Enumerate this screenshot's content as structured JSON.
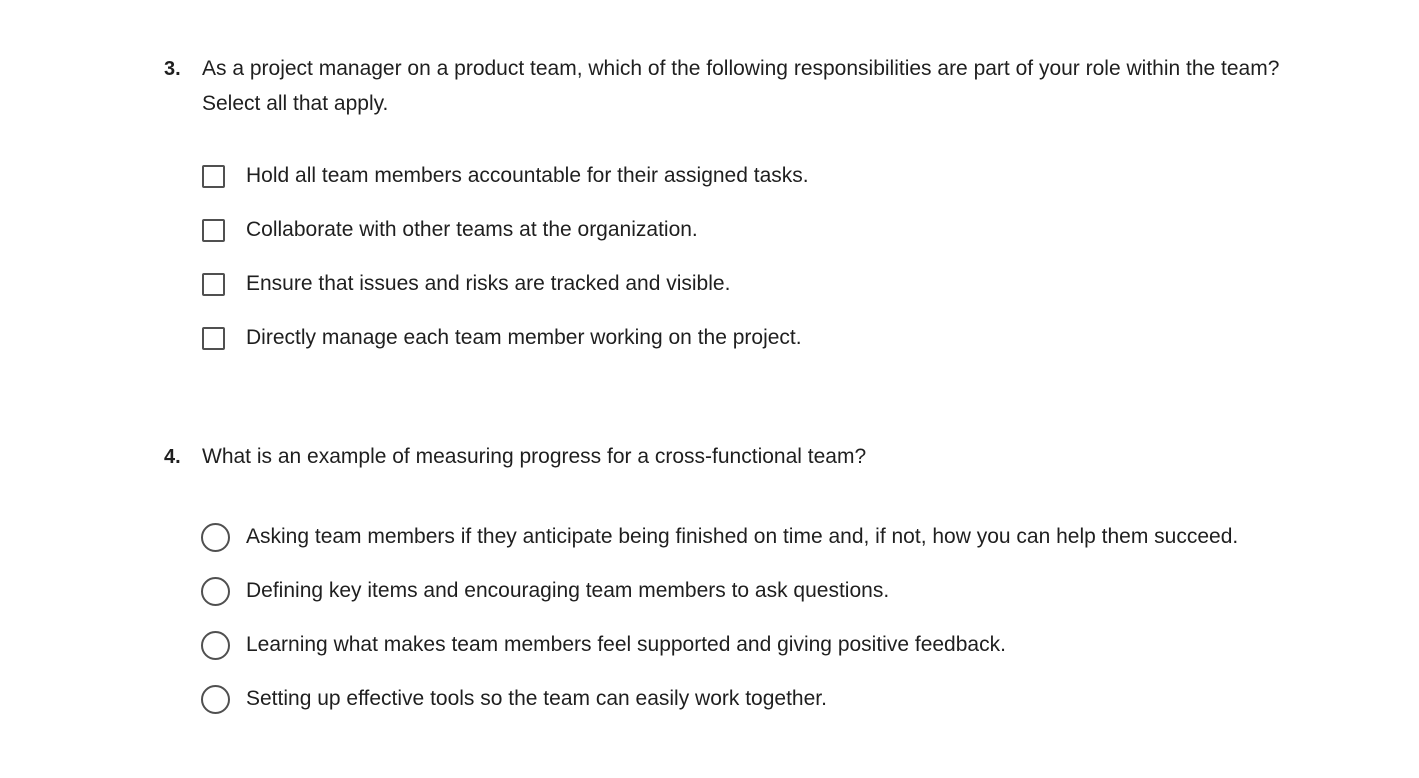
{
  "questions": [
    {
      "number": "3.",
      "text": "As a project manager on a product team, which of the following responsibilities are part of your role within the team? Select all that apply.",
      "type": "checkbox",
      "options": [
        "Hold all team members accountable for their assigned tasks.",
        "Collaborate with other teams at the organization.",
        "Ensure that issues and risks are tracked and visible.",
        "Directly manage each team member working on the project."
      ]
    },
    {
      "number": "4.",
      "text": "What is an example of measuring progress for a cross-functional team?",
      "type": "radio",
      "options": [
        "Asking team members if they anticipate being finished on time and, if not, how you can help them succeed.",
        "Defining key items and encouraging team members to ask questions.",
        "Learning what makes team members feel supported and giving positive feedback.",
        "Setting up effective tools so the team can easily work together."
      ]
    }
  ]
}
